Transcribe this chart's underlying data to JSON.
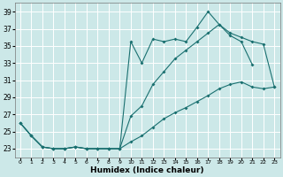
{
  "title": "",
  "xlabel": "Humidex (Indice chaleur)",
  "background_color": "#cce8e8",
  "grid_color": "#ffffff",
  "line_color": "#1a7070",
  "xlim": [
    -0.5,
    23.5
  ],
  "ylim": [
    22.0,
    40.0
  ],
  "yticks": [
    23,
    25,
    27,
    29,
    31,
    33,
    35,
    37,
    39
  ],
  "xticks": [
    0,
    1,
    2,
    3,
    4,
    5,
    6,
    7,
    8,
    9,
    10,
    11,
    12,
    13,
    14,
    15,
    16,
    17,
    18,
    19,
    20,
    21,
    22,
    23
  ],
  "s1_x": [
    0,
    1,
    2,
    3,
    4,
    5,
    6,
    7,
    8,
    9,
    10,
    11,
    12,
    13,
    14,
    15,
    16,
    17,
    18,
    19,
    20,
    21
  ],
  "s1_y": [
    26.0,
    24.5,
    23.2,
    23.0,
    23.0,
    23.2,
    23.0,
    23.0,
    23.0,
    23.0,
    35.5,
    33.0,
    35.8,
    35.5,
    35.8,
    35.5,
    37.2,
    39.0,
    37.5,
    36.2,
    35.5,
    32.8
  ],
  "s2_x": [
    0,
    1,
    2,
    3,
    4,
    5,
    6,
    7,
    8,
    9,
    10,
    11,
    12,
    13,
    14,
    15,
    16,
    17,
    18,
    19,
    20,
    21,
    22,
    23
  ],
  "s2_y": [
    26.0,
    24.5,
    23.2,
    23.0,
    23.0,
    23.2,
    23.0,
    23.0,
    23.0,
    23.0,
    26.8,
    28.0,
    30.5,
    32.0,
    33.5,
    34.5,
    35.5,
    36.5,
    37.5,
    36.5,
    36.0,
    35.5,
    35.2,
    30.2
  ],
  "s3_x": [
    0,
    1,
    2,
    3,
    4,
    5,
    6,
    7,
    8,
    9,
    10,
    11,
    12,
    13,
    14,
    15,
    16,
    17,
    18,
    19,
    20,
    21,
    22,
    23
  ],
  "s3_y": [
    26.0,
    24.5,
    23.2,
    23.0,
    23.0,
    23.2,
    23.0,
    23.0,
    23.0,
    23.0,
    23.8,
    24.5,
    25.5,
    26.5,
    27.2,
    27.8,
    28.5,
    29.2,
    30.0,
    30.5,
    30.8,
    30.2,
    30.0,
    30.2
  ]
}
